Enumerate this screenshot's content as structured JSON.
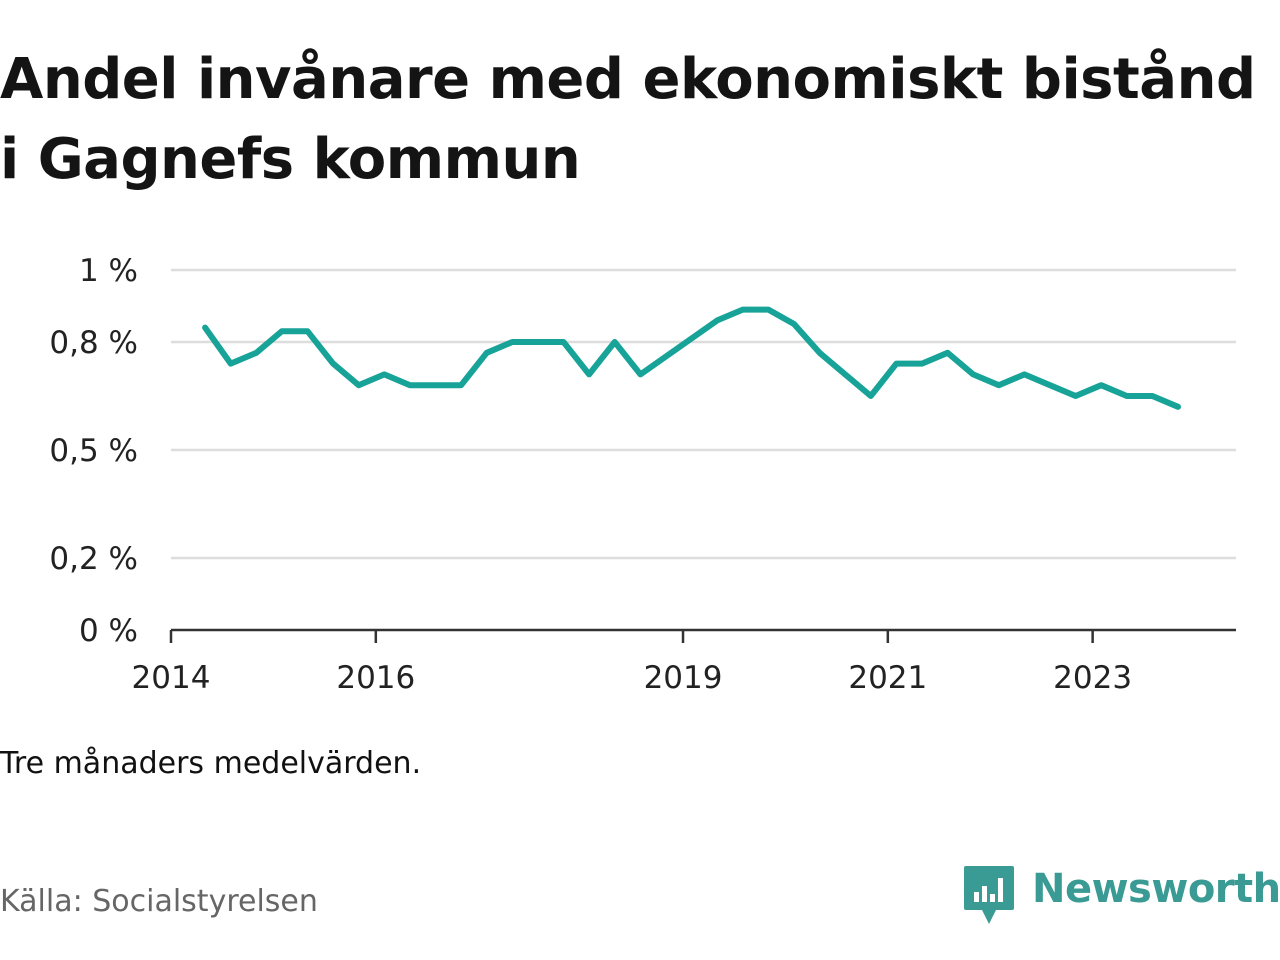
{
  "title": "Andel invånare med ekonomiskt bistånd i Gagnefs kommun",
  "note": "Tre månaders medelvärden.",
  "source": "Källa: Socialstyrelsen",
  "brand": {
    "name": "Newsworthy",
    "icon": "bar-chart-speech-bubble-icon",
    "color": "#3a9a94"
  },
  "colors": {
    "line": "#17a398",
    "grid": "#dddddd",
    "axis": "#333333"
  },
  "chart_data": {
    "type": "line",
    "title": "Andel invånare med ekonomiskt bistånd i Gagnefs kommun",
    "xlabel": "",
    "ylabel": "",
    "x_ticks": [
      "2014",
      "2016",
      "2019",
      "2021",
      "2023"
    ],
    "y_ticks": [
      "0 %",
      "0,2 %",
      "0,5 %",
      "0,8 %",
      "1 %"
    ],
    "ylim": [
      0,
      1
    ],
    "grid": true,
    "series": [
      {
        "x": [
          "2014-05",
          "2014-08",
          "2014-11",
          "2015-02",
          "2015-05",
          "2015-08",
          "2015-11",
          "2016-02",
          "2016-05",
          "2016-08",
          "2016-11",
          "2017-02",
          "2017-05",
          "2017-08",
          "2017-11",
          "2018-02",
          "2018-05",
          "2018-08",
          "2018-11",
          "2019-02",
          "2019-05",
          "2019-08",
          "2019-11",
          "2020-02",
          "2020-05",
          "2020-08",
          "2020-11",
          "2021-02",
          "2021-05",
          "2021-08",
          "2021-11",
          "2022-02",
          "2022-05",
          "2022-08",
          "2022-11",
          "2023-02",
          "2023-05",
          "2023-08",
          "2023-11"
        ],
        "values": [
          0.84,
          0.74,
          0.77,
          0.83,
          0.83,
          0.74,
          0.68,
          0.71,
          0.68,
          0.68,
          0.68,
          0.77,
          0.8,
          0.8,
          0.8,
          0.71,
          0.8,
          0.71,
          0.76,
          0.81,
          0.86,
          0.89,
          0.89,
          0.85,
          0.77,
          0.71,
          0.65,
          0.74,
          0.74,
          0.77,
          0.71,
          0.68,
          0.71,
          0.68,
          0.65,
          0.68,
          0.65,
          0.65,
          0.62
        ]
      }
    ]
  }
}
